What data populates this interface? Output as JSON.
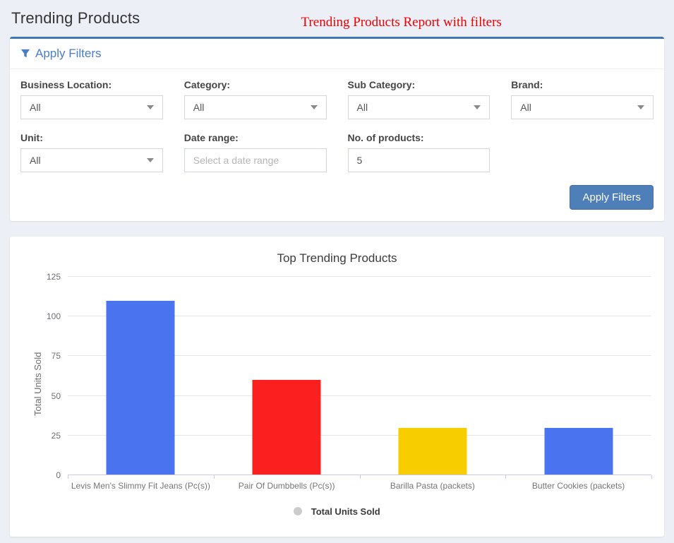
{
  "page": {
    "title": "Trending Products",
    "annotation": "Trending Products Report with filters"
  },
  "filters": {
    "header": "Apply Filters",
    "fields": [
      {
        "label": "Business Location:",
        "type": "select",
        "value": "All"
      },
      {
        "label": "Category:",
        "type": "select",
        "value": "All"
      },
      {
        "label": "Sub Category:",
        "type": "select",
        "value": "All"
      },
      {
        "label": "Brand:",
        "type": "select",
        "value": "All"
      },
      {
        "label": "Unit:",
        "type": "select",
        "value": "All"
      },
      {
        "label": "Date range:",
        "type": "text",
        "placeholder": "Select a date range"
      },
      {
        "label": "No. of products:",
        "type": "number",
        "value": "5"
      }
    ],
    "apply_button": "Apply Filters"
  },
  "chart_data": {
    "type": "bar",
    "title": "Top Trending Products",
    "ylabel": "Total Units Sold",
    "categories": [
      "Levis Men's Slimmy Fit Jeans (Pc(s))",
      "Pair Of Dumbbells (Pc(s))",
      "Barilla Pasta (packets)",
      "Butter Cookies (packets)"
    ],
    "values": [
      110,
      60,
      30,
      30
    ],
    "bar_colors": [
      "#4a73f0",
      "#fb1f1f",
      "#f8cd00",
      "#4a73f0"
    ],
    "yticks": [
      0,
      25,
      50,
      75,
      100,
      125
    ],
    "ylim": [
      0,
      125
    ],
    "grid": true,
    "legend": {
      "label": "Total Units Sold",
      "marker_color": "#cccccc",
      "position": "bottom"
    }
  },
  "colors": {
    "page_background": "#edeff6",
    "card_accent_blue": "#3d77b5",
    "link_blue": "#4a7dc2",
    "button_blue": "#4e7fb8",
    "annotation_red": "#f20000"
  }
}
